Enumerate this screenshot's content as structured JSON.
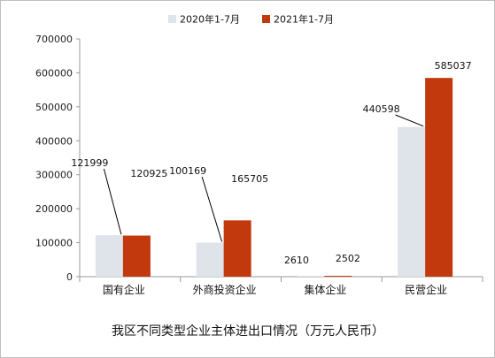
{
  "colors": {
    "series_2020": "#dfe3ea",
    "series_2021": "#c1390c",
    "axis": "#9a9a9a",
    "grid": "#d9d9d9"
  },
  "chart_data": {
    "type": "bar",
    "title": "我区不同类型企业主体进出口情况（万元人民币）",
    "categories": [
      "国有企业",
      "外商投资企业",
      "集体企业",
      "民营企业"
    ],
    "series": [
      {
        "name": "2020年1-7月",
        "values": [
          121999,
          100169,
          2610,
          440598
        ]
      },
      {
        "name": "2021年1-7月",
        "values": [
          120925,
          165705,
          2502,
          585037
        ]
      }
    ],
    "ylim": [
      0,
      700000
    ],
    "yticks": [
      "0",
      "100000",
      "200000",
      "300000",
      "400000",
      "500000",
      "600000",
      "700000"
    ],
    "legend_position": "top-center",
    "grid": false
  }
}
